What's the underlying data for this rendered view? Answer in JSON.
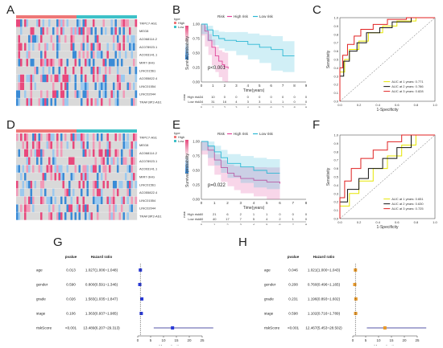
{
  "panels": {
    "A": {
      "label": "A"
    },
    "B": {
      "label": "B"
    },
    "C": {
      "label": "C"
    },
    "D": {
      "label": "D"
    },
    "E": {
      "label": "E"
    },
    "F": {
      "label": "F"
    },
    "G": {
      "label": "G"
    },
    "H": {
      "label": "H"
    }
  },
  "heatmap_genes": [
    "TRPC7-AS1",
    "MEG8",
    "AC068114.2",
    "AC078923.1",
    "AC093141.1",
    "MIR7-3HG",
    "LINC01561",
    "AC055822.4",
    "LINC01554",
    "LINC02044",
    "TRAF3IP2-AS1"
  ],
  "heatmap_legend": {
    "type_title": "type",
    "groups": [
      "High",
      "Low"
    ],
    "colors": {
      "high": "#ee7777",
      "low": "#3ec1c8"
    }
  },
  "chart_data": [
    {
      "type": "line",
      "panel": "B",
      "title": "",
      "legend_title": "Risk",
      "series_names": [
        "High risk",
        "Low risk"
      ],
      "colors": [
        "#e0469a",
        "#2cb8d4"
      ],
      "xlabel": "Time(years)",
      "ylabel": "Survival probability",
      "xlim": [
        0,
        9
      ],
      "ylim": [
        0,
        1
      ],
      "xticks": [
        0,
        1,
        2,
        3,
        4,
        5,
        6,
        7,
        8,
        9
      ],
      "yticks": [
        "0.00",
        "0.25",
        "0.50",
        "0.75",
        "1.00"
      ],
      "pvalue_text": "p<0.001",
      "series": [
        {
          "name": "High risk",
          "x": [
            0,
            0.3,
            0.6,
            0.9,
            1.2,
            1.5,
            1.8,
            2.0,
            2.3
          ],
          "y": [
            1.0,
            0.88,
            0.72,
            0.6,
            0.45,
            0.36,
            0.3,
            0.26,
            0.23
          ]
        },
        {
          "name": "Low risk",
          "x": [
            0,
            0.5,
            1.0,
            1.5,
            2.0,
            3.0,
            4.0,
            5.0,
            6.0,
            7.0,
            8.0
          ],
          "y": [
            1.0,
            0.9,
            0.8,
            0.75,
            0.72,
            0.7,
            0.65,
            0.6,
            0.56,
            0.45,
            0.45
          ]
        }
      ],
      "risk_table": {
        "title": "Risk",
        "rows": [
          {
            "name": "High risk",
            "values": [
              "34",
              "10",
              "0",
              "0",
              "0",
              "0",
              "0",
              "0",
              "0",
              "0"
            ]
          },
          {
            "name": "Low risk",
            "values": [
              "34",
              "31",
              "16",
              "4",
              "3",
              "3",
              "1",
              "1",
              "0",
              "0"
            ]
          }
        ]
      }
    },
    {
      "type": "line",
      "panel": "C",
      "title": "",
      "xlabel": "1-Specificity",
      "ylabel": "Sensitivity",
      "xlim": [
        0,
        1
      ],
      "ylim": [
        0,
        1
      ],
      "xticks": [
        "0.0",
        "0.2",
        "0.4",
        "0.6",
        "0.8",
        "1.0"
      ],
      "yticks": [
        "0.0",
        "0.1",
        "0.2",
        "0.3",
        "0.4",
        "0.5",
        "0.6",
        "0.7",
        "0.8",
        "0.9",
        "1.0"
      ],
      "colors": [
        "#e6e600",
        "#111111",
        "#e02020"
      ],
      "legend": [
        "AUC at 1 years: 0.771",
        "AUC at 2 years: 0.786",
        "AUC at 3 years: 0.828"
      ],
      "series": [
        {
          "name": "AUC at 1 years: 0.771",
          "x": [
            0,
            0,
            0.05,
            0.05,
            0.1,
            0.1,
            0.2,
            0.2,
            0.3,
            0.3,
            0.45,
            0.45,
            0.6,
            0.6,
            0.8,
            0.8,
            1
          ],
          "y": [
            0,
            0.35,
            0.35,
            0.5,
            0.5,
            0.62,
            0.62,
            0.72,
            0.72,
            0.82,
            0.82,
            0.9,
            0.9,
            0.96,
            0.96,
            1,
            1
          ]
        },
        {
          "name": "AUC at 2 years: 0.786",
          "x": [
            0,
            0,
            0.04,
            0.04,
            0.1,
            0.1,
            0.18,
            0.18,
            0.28,
            0.28,
            0.42,
            0.42,
            0.55,
            0.55,
            0.75,
            0.75,
            1
          ],
          "y": [
            0,
            0.3,
            0.3,
            0.48,
            0.48,
            0.6,
            0.6,
            0.7,
            0.7,
            0.82,
            0.82,
            0.88,
            0.88,
            0.95,
            0.95,
            1,
            1
          ]
        },
        {
          "name": "AUC at 3 years: 0.828",
          "x": [
            0,
            0,
            0.03,
            0.03,
            0.08,
            0.08,
            0.15,
            0.15,
            0.22,
            0.22,
            0.35,
            0.35,
            0.5,
            0.5,
            0.7,
            0.7,
            1
          ],
          "y": [
            0,
            0.4,
            0.4,
            0.55,
            0.55,
            0.68,
            0.68,
            0.78,
            0.78,
            0.86,
            0.86,
            0.92,
            0.92,
            0.98,
            0.98,
            1,
            1
          ]
        }
      ]
    },
    {
      "type": "line",
      "panel": "E",
      "title": "",
      "legend_title": "Risk",
      "series_names": [
        "High risk",
        "Low risk"
      ],
      "colors": [
        "#e0469a",
        "#2cb8d4"
      ],
      "xlabel": "Time(years)",
      "ylabel": "Survival probability",
      "xlim": [
        0,
        8
      ],
      "ylim": [
        0,
        1
      ],
      "xticks": [
        0,
        1,
        2,
        3,
        4,
        5,
        6,
        7,
        8
      ],
      "yticks": [
        "0.00",
        "0.25",
        "0.50",
        "0.75",
        "1.00"
      ],
      "pvalue_text": "p=0.022",
      "series": [
        {
          "name": "High risk",
          "x": [
            0,
            0.5,
            1.0,
            1.5,
            2.0,
            2.5,
            3.0,
            4.0,
            5.0,
            6.0
          ],
          "y": [
            1.0,
            0.85,
            0.68,
            0.55,
            0.45,
            0.4,
            0.36,
            0.33,
            0.3,
            0.27
          ]
        },
        {
          "name": "Low risk",
          "x": [
            0,
            0.5,
            1.0,
            1.5,
            2.0,
            3.0,
            4.0,
            5.0,
            6.0
          ],
          "y": [
            1.0,
            0.92,
            0.82,
            0.72,
            0.62,
            0.56,
            0.5,
            0.45,
            0.45
          ]
        }
      ],
      "risk_table": {
        "title": "Risk",
        "rows": [
          {
            "name": "High risk",
            "values": [
              "60",
              "21",
              "6",
              "2",
              "1",
              "1",
              "0",
              "0",
              "0"
            ]
          },
          {
            "name": "Low risk",
            "values": [
              "60",
              "40",
              "17",
              "7",
              "5",
              "4",
              "2",
              "1",
              "0"
            ]
          }
        ]
      }
    },
    {
      "type": "line",
      "panel": "F",
      "title": "",
      "xlabel": "1-Specificity",
      "ylabel": "Sensitivity",
      "xlim": [
        0,
        1
      ],
      "ylim": [
        0,
        1
      ],
      "xticks": [
        "0.0",
        "0.2",
        "0.4",
        "0.6",
        "0.8",
        "1.0"
      ],
      "yticks": [
        "0.0",
        "0.1",
        "0.2",
        "0.3",
        "0.4",
        "0.5",
        "0.6",
        "0.7",
        "0.8",
        "0.9",
        "1.0"
      ],
      "colors": [
        "#e6e600",
        "#111111",
        "#e02020"
      ],
      "legend": [
        "AUC at 1 years: 0.651",
        "AUC at 2 years: 0.630",
        "AUC at 3 years: 0.725"
      ],
      "series": [
        {
          "name": "AUC at 1 years: 0.651",
          "x": [
            0,
            0,
            0.1,
            0.1,
            0.2,
            0.2,
            0.35,
            0.35,
            0.5,
            0.5,
            0.65,
            0.65,
            0.8,
            0.8,
            1
          ],
          "y": [
            0,
            0.15,
            0.15,
            0.3,
            0.3,
            0.45,
            0.45,
            0.6,
            0.6,
            0.75,
            0.75,
            0.88,
            0.88,
            1,
            1
          ]
        },
        {
          "name": "AUC at 2 years: 0.630",
          "x": [
            0,
            0,
            0.08,
            0.08,
            0.2,
            0.2,
            0.3,
            0.3,
            0.45,
            0.45,
            0.6,
            0.6,
            0.75,
            0.75,
            1
          ],
          "y": [
            0,
            0.2,
            0.2,
            0.35,
            0.35,
            0.48,
            0.48,
            0.6,
            0.6,
            0.72,
            0.72,
            0.85,
            0.85,
            1,
            1
          ]
        },
        {
          "name": "AUC at 3 years: 0.725",
          "x": [
            0,
            0,
            0.05,
            0.05,
            0.12,
            0.12,
            0.22,
            0.22,
            0.35,
            0.35,
            0.5,
            0.5,
            0.65,
            0.65,
            1
          ],
          "y": [
            0,
            0.25,
            0.25,
            0.45,
            0.45,
            0.6,
            0.6,
            0.72,
            0.72,
            0.82,
            0.82,
            0.92,
            0.92,
            1,
            1
          ]
        }
      ]
    },
    {
      "type": "scatter",
      "panel": "G",
      "title": "",
      "headers": {
        "pvalue": "pvalue",
        "hr": "Hazard ratio"
      },
      "xlabel": "Hazard ratio",
      "xlim": [
        0,
        30
      ],
      "xticks": [
        0,
        5,
        10,
        15,
        20,
        25
      ],
      "marker_color": "#2a3ad6",
      "rows": [
        {
          "variable": "age",
          "pvalue": "0.013",
          "hr_text": "1.027(1.006~1.048)",
          "hr": 1.027,
          "lo": 1.006,
          "hi": 1.048
        },
        {
          "variable": "gender",
          "pvalue": "0.590",
          "hr_text": "0.800(0.591~1.346)",
          "hr": 0.8,
          "lo": 0.591,
          "hi": 1.346
        },
        {
          "variable": "grade",
          "pvalue": "0.026",
          "hr_text": "1.583(1.035~1.847)",
          "hr": 1.583,
          "lo": 1.035,
          "hi": 1.847
        },
        {
          "variable": "stage",
          "pvalue": "0.106",
          "hr_text": "1.363(0.937~1.985)",
          "hr": 1.363,
          "lo": 0.937,
          "hi": 1.985
        },
        {
          "variable": "riskScore",
          "pvalue": "<0.001",
          "hr_text": "13.489(6.207~29.313)",
          "hr": 13.489,
          "lo": 6.207,
          "hi": 29.313
        }
      ]
    },
    {
      "type": "scatter",
      "panel": "H",
      "title": "",
      "headers": {
        "pvalue": "pvalue",
        "hr": "Hazard ratio"
      },
      "xlabel": "Hazard ratio",
      "xlim": [
        0,
        30
      ],
      "xticks": [
        0,
        5,
        10,
        15,
        20,
        25
      ],
      "marker_color": "#e89a2c",
      "rows": [
        {
          "variable": "age",
          "pvalue": "0.046",
          "hr_text": "1.021(1.000~1.043)",
          "hr": 1.021,
          "lo": 1.0,
          "hi": 1.043
        },
        {
          "variable": "gender",
          "pvalue": "0.208",
          "hr_text": "0.760(0.496~1.165)",
          "hr": 0.76,
          "lo": 0.496,
          "hi": 1.165
        },
        {
          "variable": "grade",
          "pvalue": "0.231",
          "hr_text": "1.196(0.893~1.602)",
          "hr": 1.196,
          "lo": 0.893,
          "hi": 1.602
        },
        {
          "variable": "stage",
          "pvalue": "0.598",
          "hr_text": "1.102(0.716~1.789)",
          "hr": 1.102,
          "lo": 0.716,
          "hi": 1.789
        },
        {
          "variable": "riskScore",
          "pvalue": "<0.001",
          "hr_text": "12.467(5.453~28.502)",
          "hr": 12.467,
          "lo": 5.453,
          "hi": 28.502
        }
      ]
    }
  ]
}
